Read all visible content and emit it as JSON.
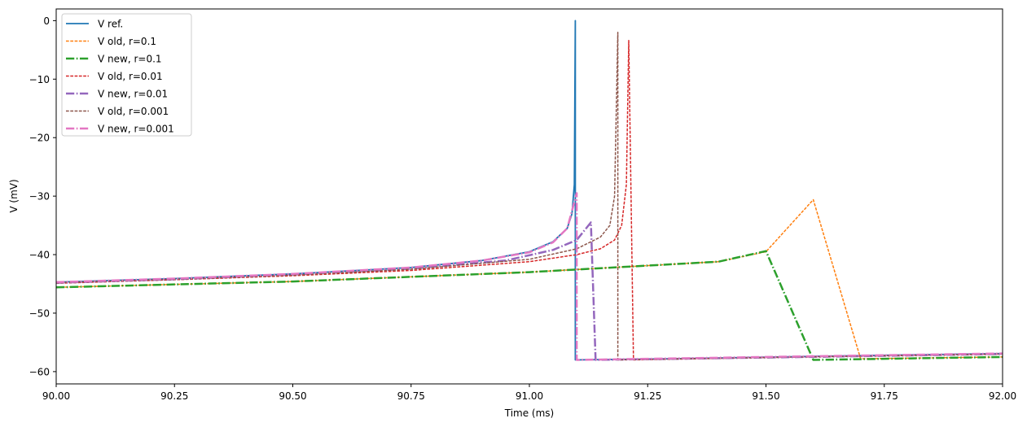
{
  "chart_data": {
    "type": "line",
    "title": "",
    "xlabel": "Time (ms)",
    "ylabel": "V (mV)",
    "xlim": [
      90.0,
      92.0
    ],
    "ylim": [
      -62.1,
      2.0
    ],
    "grid": false,
    "legend_position": "upper left",
    "x_ticks": [
      90.0,
      90.25,
      90.5,
      90.75,
      91.0,
      91.25,
      91.5,
      91.75,
      92.0
    ],
    "x_tick_labels": [
      "90.00",
      "90.25",
      "90.50",
      "90.75",
      "91.00",
      "91.25",
      "91.50",
      "91.75",
      "92.00"
    ],
    "y_ticks": [
      0,
      -10,
      -20,
      -30,
      -40,
      -50,
      -60
    ],
    "y_tick_labels": [
      "0",
      "−10",
      "−20",
      "−30",
      "−40",
      "−50",
      "−60"
    ],
    "series": [
      {
        "name": "V ref.",
        "color": "#1f77b4",
        "style": "solid",
        "width": 1.8,
        "x": [
          90.0,
          90.25,
          90.5,
          90.75,
          90.9,
          91.0,
          91.05,
          91.08,
          91.09,
          91.095,
          91.097,
          91.097,
          91.3,
          91.6,
          92.0
        ],
        "y": [
          -44.7,
          -44.1,
          -43.3,
          -42.2,
          -41.0,
          -39.5,
          -37.8,
          -35.5,
          -33.0,
          -28.0,
          0.0,
          -58.0,
          -57.8,
          -57.4,
          -56.9
        ]
      },
      {
        "name": "V old, r=0.1",
        "color": "#ff7f0e",
        "style": "dashed",
        "width": 1.5,
        "x": [
          90.0,
          90.5,
          91.0,
          91.4,
          91.5,
          91.6,
          91.7,
          92.0
        ],
        "y": [
          -45.6,
          -44.6,
          -43.0,
          -41.2,
          -39.5,
          -30.6,
          -57.8,
          -57.5
        ]
      },
      {
        "name": "V new, r=0.1",
        "color": "#2ca02c",
        "style": "dashdot",
        "width": 2.5,
        "x": [
          90.0,
          90.5,
          91.0,
          91.4,
          91.5,
          91.6,
          92.0
        ],
        "y": [
          -45.6,
          -44.6,
          -43.0,
          -41.2,
          -39.4,
          -58.0,
          -57.5
        ]
      },
      {
        "name": "V old, r=0.01",
        "color": "#d62728",
        "style": "dashed",
        "width": 1.5,
        "x": [
          90.0,
          90.25,
          90.5,
          90.75,
          91.0,
          91.1,
          91.15,
          91.18,
          91.195,
          91.205,
          91.21,
          91.22,
          91.22,
          91.5,
          92.0
        ],
        "y": [
          -44.9,
          -44.3,
          -43.6,
          -42.7,
          -41.2,
          -40.0,
          -39.0,
          -37.5,
          -35.0,
          -28.0,
          -3.4,
          -58.0,
          -58.0,
          -57.6,
          -57.0
        ]
      },
      {
        "name": "V new, r=0.01",
        "color": "#9467bd",
        "style": "dashdot",
        "width": 2.5,
        "x": [
          90.0,
          90.25,
          90.5,
          90.75,
          90.95,
          91.05,
          91.1,
          91.13,
          91.13,
          91.14,
          91.14,
          91.5,
          92.0
        ],
        "y": [
          -44.8,
          -44.2,
          -43.4,
          -42.4,
          -41.0,
          -39.2,
          -37.5,
          -34.5,
          -34.5,
          -58.0,
          -58.0,
          -57.6,
          -57.0
        ]
      },
      {
        "name": "V old, r=0.001",
        "color": "#8c564b",
        "style": "dashed",
        "width": 1.5,
        "x": [
          90.0,
          90.25,
          90.5,
          90.75,
          91.0,
          91.1,
          91.15,
          91.17,
          91.18,
          91.187,
          91.187,
          91.5,
          92.0
        ],
        "y": [
          -44.8,
          -44.2,
          -43.5,
          -42.5,
          -40.8,
          -39.0,
          -37.0,
          -35.0,
          -30.0,
          -2.0,
          -58.0,
          -57.6,
          -57.0
        ]
      },
      {
        "name": "V new, r=0.001",
        "color": "#e377c2",
        "style": "dashdot",
        "width": 2.5,
        "x": [
          90.0,
          90.25,
          90.5,
          90.75,
          90.9,
          91.0,
          91.05,
          91.08,
          91.1,
          91.1,
          91.5,
          92.0
        ],
        "y": [
          -44.7,
          -44.1,
          -43.3,
          -42.2,
          -41.0,
          -39.6,
          -37.9,
          -35.5,
          -29.5,
          -58.0,
          -57.5,
          -56.9
        ]
      }
    ]
  }
}
